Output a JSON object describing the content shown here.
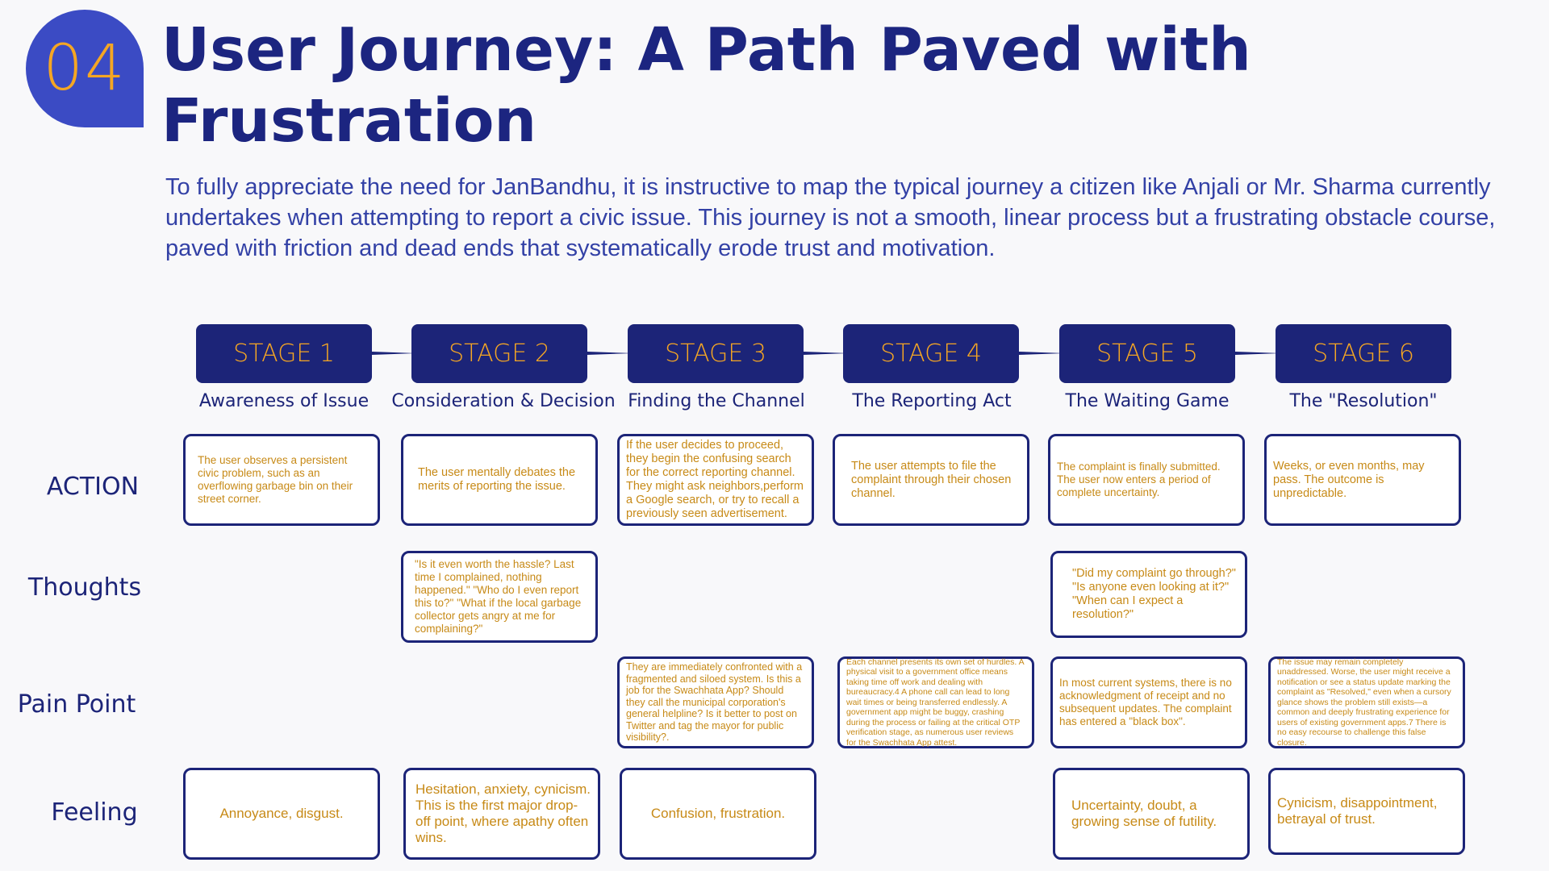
{
  "header": {
    "badge_number": "04",
    "title": "User Journey: A Path Paved with Frustration",
    "intro": "To fully appreciate the need for JanBandhu, it is instructive to map the typical journey a citizen like Anjali or Mr. Sharma currently undertakes when attempting to report a  civic issue. This journey is not a smooth, linear process but a frustrating obstacle course, paved with friction and dead ends that systematically erode trust and motivation."
  },
  "row_labels": {
    "action": "ACTION",
    "thoughts": "Thoughts",
    "pain_point": "Pain Point",
    "feeling": "Feeling"
  },
  "stages": [
    {
      "label": "STAGE 1",
      "name": "Awareness of Issue",
      "action": "The user observes a persistent civic problem, such as an overflowing garbage bin on their street corner.",
      "feeling": "Annoyance, disgust."
    },
    {
      "label": "STAGE 2",
      "name": "Consideration & Decision",
      "action": "The user mentally debates the merits of reporting the issue.",
      "thoughts": "\"Is it even worth the hassle? Last time I complained, nothing happened.\" \"Who do I even report this to?\" \"What if the local garbage collector gets angry at me for complaining?\"",
      "feeling": "Hesitation, anxiety, cynicism. This is the first major drop-off point, where apathy often wins."
    },
    {
      "label": "STAGE 3",
      "name": "Finding the Channel",
      "action": "If the user decides to proceed, they begin the confusing search for the correct reporting channel. They might ask neighbors,perform a Google search, or try to recall a previously seen advertisement.",
      "pain_point": "They are immediately confronted with a fragmented and siloed system. Is this a job for the Swachhata App? Should they call the municipal corporation's general helpline? Is it better to post on Twitter and tag the mayor for public visibility?.",
      "feeling": "Confusion, frustration."
    },
    {
      "label": "STAGE 4",
      "name": "The Reporting Act",
      "action": "The user attempts to file the complaint through their chosen channel.",
      "pain_point": "Each channel presents its own set of hurdles. A physical visit to a government office means taking time off work and dealing with bureaucracy.4 A phone call can lead to long wait times or being transferred endlessly. A government app might be buggy, crashing during the process or failing at the critical OTP verification stage, as numerous user reviews for the Swachhata App attest."
    },
    {
      "label": "STAGE 5",
      "name": "The Waiting Game",
      "action": "The complaint is finally submitted. The user now enters a period of complete uncertainty.",
      "thoughts": "\"Did my complaint go through?\" \"Is anyone even looking at it?\"\n\"When can I expect a resolution?\"",
      "pain_point": "In most current systems, there is no acknowledgment of receipt and no subsequent updates. The complaint has entered a \"black box\".",
      "feeling": "Uncertainty, doubt, a growing sense of futility."
    },
    {
      "label": "STAGE 6",
      "name": "The \"Resolution\"",
      "action": "Weeks, or even months, may pass. The outcome is unpredictable.",
      "pain_point": "The issue may remain completely unaddressed. Worse, the user might receive a notification or see a status update marking the complaint as \"Resolved,\" even when a cursory glance shows the problem still exists—a common and deeply frustrating experience for users of existing government apps.7 There is no easy recourse to challenge this false closure.",
      "feeling": "Cynicism, disappointment, betrayal of trust."
    }
  ]
}
